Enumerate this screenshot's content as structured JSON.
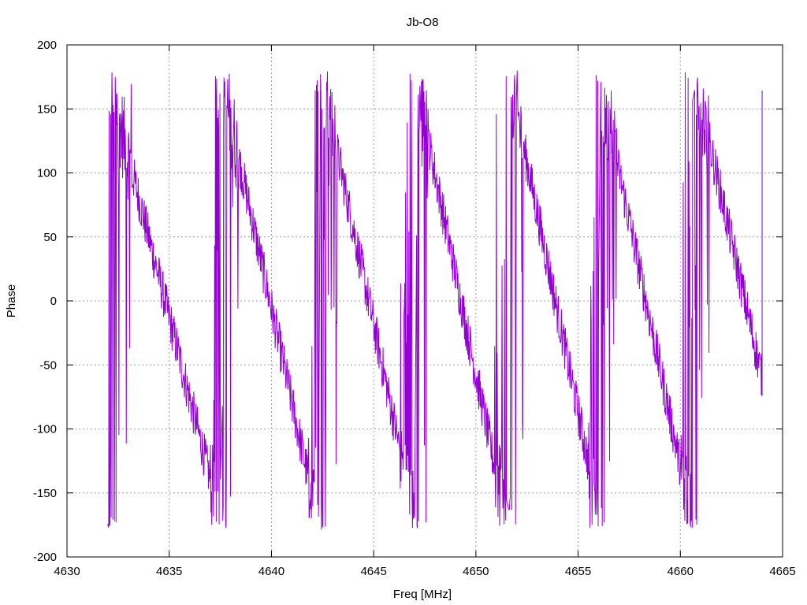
{
  "chart_data": {
    "type": "line",
    "title": "Jb-O8",
    "xlabel": "Freq [MHz]",
    "ylabel": "Phase",
    "xlim": [
      4630,
      4665
    ],
    "ylim": [
      -200,
      200
    ],
    "xticks": [
      4630,
      4635,
      4640,
      4645,
      4650,
      4655,
      4660,
      4665
    ],
    "yticks": [
      -200,
      -150,
      -100,
      -50,
      0,
      50,
      100,
      150,
      200
    ],
    "grid": true,
    "color": "#9400d3",
    "data_x_range": [
      4632,
      4664
    ],
    "phase_wrap_centers": [
      4632.5,
      4637.7,
      4642.5,
      4647.0,
      4651.6,
      4656.2,
      4660.7
    ],
    "series": [
      {
        "segments": [
          {
            "x": [
              4632.0,
              4637.5
            ],
            "y": [
              175,
              -170
            ]
          },
          {
            "x": [
              4637.6,
              4642.3
            ],
            "y": [
              170,
              -175
            ]
          },
          {
            "x": [
              4642.4,
              4647.0
            ],
            "y": [
              178,
              -170
            ]
          },
          {
            "x": [
              4647.1,
              4651.5
            ],
            "y": [
              170,
              -175
            ]
          },
          {
            "x": [
              4651.6,
              4656.0
            ],
            "y": [
              178,
              -165
            ]
          },
          {
            "x": [
              4656.1,
              4660.6
            ],
            "y": [
              170,
              -175
            ]
          },
          {
            "x": [
              4660.7,
              4664.0
            ],
            "y": [
              175,
              -60
            ]
          },
          {
            "x": [
              4664.0,
              4664.0
            ],
            "y": [
              -60,
              180
            ]
          }
        ]
      }
    ]
  }
}
